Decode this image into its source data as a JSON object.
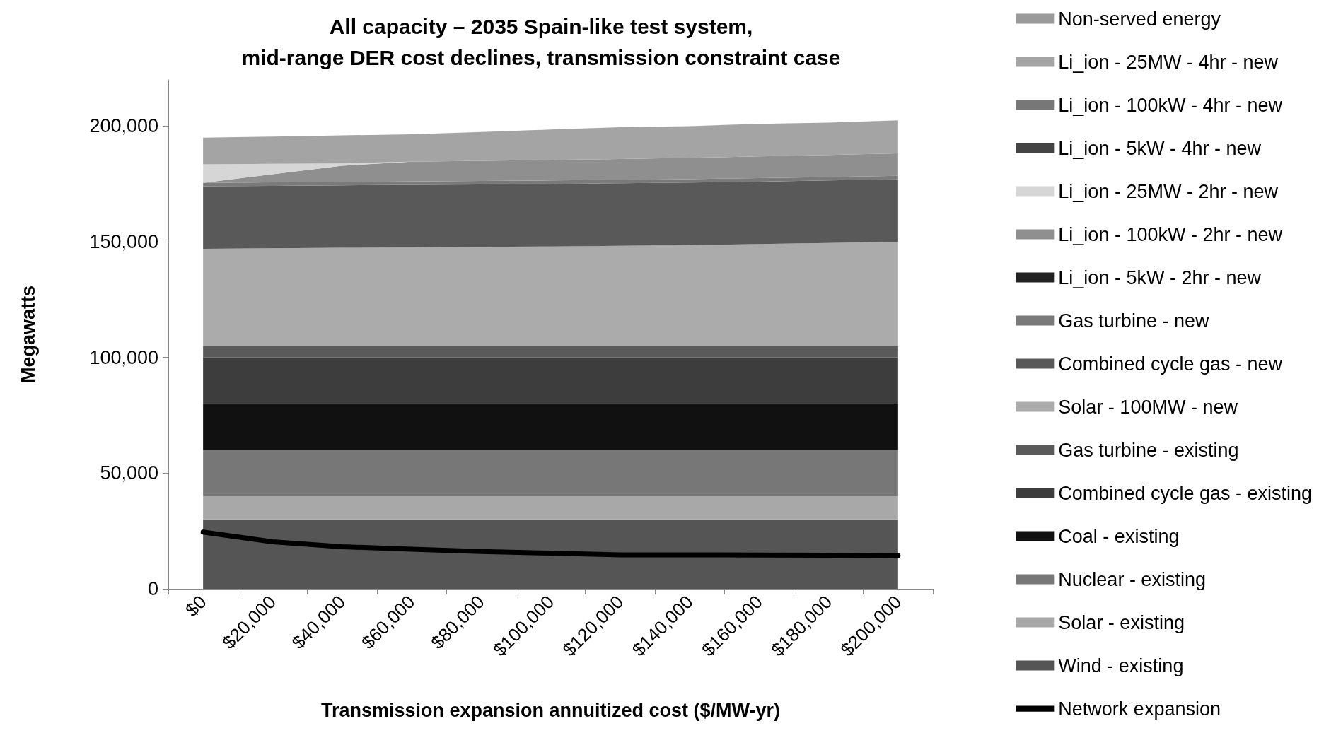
{
  "chart_data": {
    "type": "area",
    "stacked": true,
    "title": "All capacity – 2035 Spain-like test system,\nmid-range DER cost declines, transmission constraint case",
    "xlabel": "Transmission expansion annuitized cost ($/MW-yr)",
    "ylabel": "Megawatts",
    "categories": [
      "$0",
      "$20,000",
      "$40,000",
      "$60,000",
      "$80,000",
      "$100,000",
      "$120,000",
      "$140,000",
      "$160,000",
      "$180,000",
      "$200,000"
    ],
    "ylim": [
      0,
      220000
    ],
    "yticks": [
      0,
      {
        "value": 50000,
        "label": "50,000"
      },
      {
        "value": 100000,
        "label": "100,000"
      },
      {
        "value": 150000,
        "label": "150,000"
      },
      {
        "value": 200000,
        "label": "200,000"
      }
    ],
    "grid": false,
    "legend": "right",
    "series": [
      {
        "name": "Wind - existing",
        "color": "#555555",
        "values": [
          30000,
          30000,
          30000,
          30000,
          30000,
          30000,
          30000,
          30000,
          30000,
          30000,
          30000
        ]
      },
      {
        "name": "Solar - existing",
        "color": "#a8a8a8",
        "values": [
          10000,
          10000,
          10000,
          10000,
          10000,
          10000,
          10000,
          10000,
          10000,
          10000,
          10000
        ]
      },
      {
        "name": "Nuclear - existing",
        "color": "#777777",
        "values": [
          20000,
          20000,
          20000,
          20000,
          20000,
          20000,
          20000,
          20000,
          20000,
          20000,
          20000
        ]
      },
      {
        "name": "Coal - existing",
        "color": "#111111",
        "values": [
          20000,
          20000,
          20000,
          20000,
          20000,
          20000,
          20000,
          20000,
          20000,
          20000,
          20000
        ]
      },
      {
        "name": "Combined cycle gas - existing",
        "color": "#3d3d3d",
        "values": [
          20000,
          20000,
          20000,
          20000,
          20000,
          20000,
          20000,
          20000,
          20000,
          20000,
          20000
        ]
      },
      {
        "name": "Gas turbine - existing",
        "color": "#5a5a5a",
        "values": [
          5000,
          5000,
          5000,
          5000,
          5000,
          5000,
          5000,
          5000,
          5000,
          5000,
          5000
        ]
      },
      {
        "name": "Solar - 100MW - new",
        "color": "#ababab",
        "values": [
          42000,
          42200,
          42400,
          42600,
          42800,
          43000,
          43300,
          43600,
          44000,
          44500,
          45000
        ]
      },
      {
        "name": "Combined cycle gas - new",
        "color": "#595959",
        "values": [
          27000,
          27000,
          27000,
          27000,
          27000,
          27000,
          27000,
          27000,
          27000,
          27000,
          27000
        ]
      },
      {
        "name": "Gas turbine - new",
        "color": "#7a7a7a",
        "values": [
          1500,
          1500,
          1500,
          1500,
          1500,
          1500,
          1500,
          1500,
          1500,
          1500,
          1500
        ]
      },
      {
        "name": "Li_ion - 5kW - 2hr - new",
        "color": "#222222",
        "values": [
          null,
          null,
          null,
          null,
          null,
          null,
          null,
          null,
          null,
          null,
          null
        ]
      },
      {
        "name": "Li_ion - 100kW - 2hr - new",
        "color": "#8f8f8f",
        "values": [
          0,
          3500,
          7000,
          8500,
          8700,
          8900,
          9000,
          9200,
          9400,
          9500,
          9700
        ]
      },
      {
        "name": "Li_ion - 25MW - 2hr - new",
        "color": "#d6d6d6",
        "values": [
          8000,
          4500,
          1000,
          0,
          null,
          null,
          null,
          null,
          null,
          null,
          null
        ]
      },
      {
        "name": "Li_ion - 5kW - 4hr - new",
        "color": "#444444",
        "values": [
          null,
          null,
          null,
          null,
          null,
          null,
          null,
          null,
          null,
          null,
          null
        ]
      },
      {
        "name": "Li_ion - 100kW - 4hr - new",
        "color": "#777777",
        "values": [
          null,
          null,
          null,
          null,
          null,
          null,
          null,
          null,
          null,
          null,
          null
        ]
      },
      {
        "name": "Li_ion - 25MW - 4hr - new",
        "color": "#a4a4a4",
        "values": [
          11500,
          11800,
          12100,
          11900,
          12500,
          13100,
          13700,
          13700,
          14100,
          14000,
          14300
        ]
      },
      {
        "name": "Non-served energy",
        "color": "#9a9a9a",
        "values": [
          null,
          null,
          null,
          null,
          null,
          null,
          null,
          null,
          null,
          null,
          null
        ]
      },
      {
        "name": "Network expansion",
        "type": "line",
        "color": "#000000",
        "values": [
          24500,
          20300,
          18200,
          17100,
          16100,
          15400,
          14700,
          14700,
          14600,
          14500,
          14300
        ]
      }
    ]
  }
}
